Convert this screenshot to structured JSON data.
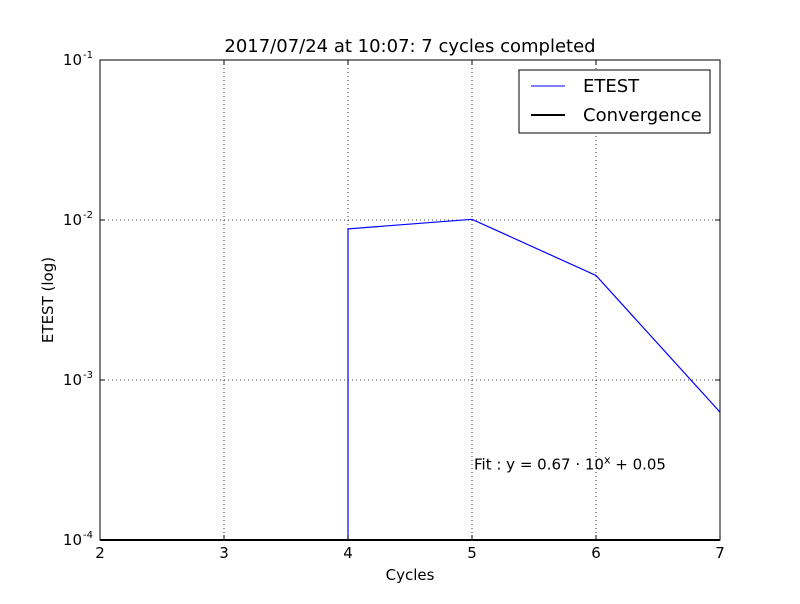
{
  "chart_data": {
    "type": "line",
    "title": "2017/07/24 at 10:07: 7 cycles completed",
    "xlabel": "Cycles",
    "ylabel": "ETEST (log)",
    "xlim": [
      2,
      7
    ],
    "ylim": [
      0.0001,
      0.1
    ],
    "yscale": "log",
    "grid": true,
    "legend_position": "top-right",
    "x_ticks": [
      "2",
      "3",
      "4",
      "5",
      "6",
      "7"
    ],
    "y_ticks": [
      {
        "base": "10",
        "exp": "-4",
        "value": 0.0001
      },
      {
        "base": "10",
        "exp": "-3",
        "value": 0.001
      },
      {
        "base": "10",
        "exp": "-2",
        "value": 0.01
      },
      {
        "base": "10",
        "exp": "-1",
        "value": 0.1
      }
    ],
    "series": [
      {
        "name": "ETEST",
        "color": "#0000ff",
        "x": [
          4.0,
          4.0,
          5,
          6,
          7
        ],
        "y": [
          0.0001,
          0.0088,
          0.0101,
          0.0045,
          0.00063
        ]
      },
      {
        "name": "Convergence",
        "color": "#000000",
        "x": [
          2,
          7
        ],
        "y": [
          0.0001,
          0.0001
        ]
      }
    ],
    "annotation": {
      "prefix": "Fit : y = 0.67 · 10",
      "sup": "x",
      "suffix": " + 0.05",
      "x": 5.0,
      "y": 0.0003
    }
  }
}
